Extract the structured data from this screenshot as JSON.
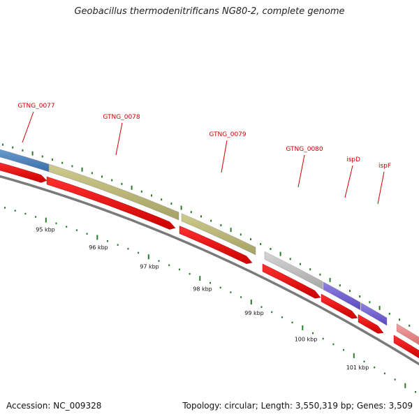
{
  "title": "Geobacillus thermodenitrificans NG80-2, complete genome",
  "footer": {
    "accession": "Accession: NC_009328",
    "summary": "Topology: circular; Length: 3,550,319 bp; Genes: 3,509"
  },
  "colors": {
    "backbone": "#7a7a7a",
    "cds": "#ee0000",
    "tick": "#2a7a2a",
    "gene_label": "#cc0000"
  },
  "gene_labels": [
    "GTNG_0077",
    "GTNG_0078",
    "GTNG_0079",
    "GTNG_0080",
    "ispD",
    "ispF"
  ],
  "scale_labels": [
    "95 kbp",
    "96 kbp",
    "97 kbp",
    "98 kbp",
    "99 kbp",
    "100 kbp",
    "101 kbp"
  ]
}
